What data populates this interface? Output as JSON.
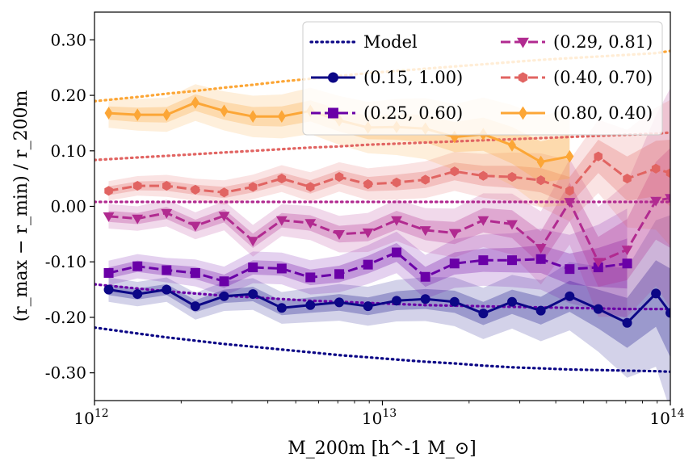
{
  "chart_data": {
    "type": "line",
    "title": "",
    "xlabel": "M_200m [h^-1 M_⊙]",
    "ylabel": "(r_max − r_min) / r_200m",
    "xscale": "log",
    "xlim": [
      1000000000000.0,
      100000000000000.0
    ],
    "ylim": [
      -0.35,
      0.35
    ],
    "xticks": [
      {
        "value": 1000000000000.0,
        "base": "10",
        "exp": "12"
      },
      {
        "value": 10000000000000.0,
        "base": "10",
        "exp": "13"
      },
      {
        "value": 100000000000000.0,
        "base": "10",
        "exp": "14"
      }
    ],
    "yticks": [
      {
        "value": -0.3,
        "label": "-0.30"
      },
      {
        "value": -0.2,
        "label": "-0.20"
      },
      {
        "value": -0.1,
        "label": "-0.10"
      },
      {
        "value": 0.0,
        "label": "0.00"
      },
      {
        "value": 0.1,
        "label": "0.10"
      },
      {
        "value": 0.2,
        "label": "0.20"
      },
      {
        "value": 0.3,
        "label": "0.30"
      }
    ],
    "grid": false,
    "legend_placement": "top-right",
    "legend_model_label": "Model",
    "x": [
      1120000000000.0,
      1410000000000.0,
      1780000000000.0,
      2240000000000.0,
      2820000000000.0,
      3550000000000.0,
      4470000000000.0,
      5620000000000.0,
      7080000000000.0,
      8910000000000.0,
      11200000000000.0,
      14100000000000.0,
      17800000000000.0,
      22400000000000.0,
      28200000000000.0,
      35500000000000.0,
      44700000000000.0,
      56200000000000.0,
      70800000000000.0,
      89100000000000.0,
      100000000000000.0
    ],
    "series": [
      {
        "name": "(0.15, 1.00)",
        "color": "#0c0786",
        "marker": "circle",
        "dash": "solid",
        "values": [
          -0.15,
          -0.158,
          -0.15,
          -0.18,
          -0.162,
          -0.158,
          -0.183,
          -0.178,
          -0.173,
          -0.18,
          -0.17,
          -0.167,
          -0.172,
          -0.193,
          -0.172,
          -0.188,
          -0.162,
          -0.185,
          -0.21,
          -0.157,
          -0.192
        ],
        "model": [
          -0.222,
          -0.229,
          -0.236,
          -0.242,
          -0.248,
          -0.253,
          -0.258,
          -0.263,
          -0.268,
          -0.272,
          -0.276,
          -0.28,
          -0.283,
          -0.287,
          -0.29,
          -0.292,
          -0.294,
          -0.295,
          -0.296,
          -0.297,
          -0.298
        ],
        "spread": [
          0.01,
          0.01,
          0.01,
          0.011,
          0.012,
          0.013,
          0.013,
          0.014,
          0.015,
          0.016,
          0.017,
          0.018,
          0.02,
          0.021,
          0.022,
          0.025,
          0.028,
          0.035,
          0.045,
          0.06,
          0.08
        ]
      },
      {
        "name": "(0.25, 0.60)",
        "color": "#6a00a7",
        "marker": "square",
        "dash": "dashed",
        "values": [
          -0.12,
          -0.108,
          -0.115,
          -0.12,
          -0.135,
          -0.11,
          -0.112,
          -0.128,
          -0.122,
          -0.105,
          -0.083,
          -0.127,
          -0.103,
          -0.097,
          -0.097,
          -0.095,
          -0.113,
          -0.11,
          -0.103,
          null,
          null
        ],
        "model": [
          -0.143,
          -0.148,
          -0.153,
          -0.157,
          -0.161,
          -0.164,
          -0.167,
          -0.17,
          -0.172,
          -0.174,
          -0.176,
          -0.178,
          -0.179,
          -0.18,
          -0.181,
          -0.182,
          -0.183,
          -0.184,
          -0.185,
          -0.185,
          -0.185
        ],
        "spread": [
          0.01,
          0.01,
          0.01,
          0.011,
          0.012,
          0.013,
          0.013,
          0.014,
          0.015,
          0.016,
          0.017,
          0.018,
          0.02,
          0.021,
          0.022,
          0.025,
          0.028,
          0.035,
          0.045,
          0.06,
          0.08
        ]
      },
      {
        "name": "(0.29, 0.81)",
        "color": "#b12a90",
        "marker": "triangle",
        "dash": "dashed",
        "values": [
          -0.018,
          -0.022,
          -0.012,
          -0.035,
          -0.017,
          -0.062,
          -0.025,
          -0.03,
          -0.05,
          -0.047,
          -0.025,
          -0.043,
          -0.048,
          -0.025,
          -0.032,
          -0.075,
          0.008,
          -0.1,
          -0.078,
          0.01,
          0.015
        ],
        "model": [
          0.008,
          0.008,
          0.008,
          0.008,
          0.008,
          0.008,
          0.008,
          0.008,
          0.008,
          0.008,
          0.008,
          0.008,
          0.008,
          0.008,
          0.008,
          0.008,
          0.008,
          0.008,
          0.008,
          0.008,
          0.008
        ],
        "spread": [
          0.01,
          0.01,
          0.011,
          0.011,
          0.012,
          0.013,
          0.013,
          0.014,
          0.015,
          0.016,
          0.017,
          0.018,
          0.02,
          0.022,
          0.025,
          0.03,
          0.035,
          0.045,
          0.055,
          0.07,
          0.09
        ]
      },
      {
        "name": "(0.40, 0.70)",
        "color": "#e16462",
        "marker": "hexagon",
        "dash": "dashed",
        "values": [
          0.028,
          0.037,
          0.037,
          0.03,
          0.025,
          0.035,
          0.05,
          0.035,
          0.053,
          0.04,
          0.043,
          0.048,
          0.063,
          0.055,
          0.053,
          0.047,
          0.028,
          0.09,
          0.05,
          0.068,
          0.06
        ],
        "model": [
          0.085,
          0.088,
          0.091,
          0.094,
          0.097,
          0.1,
          0.103,
          0.106,
          0.108,
          0.111,
          0.113,
          0.115,
          0.117,
          0.119,
          0.121,
          0.123,
          0.125,
          0.127,
          0.129,
          0.131,
          0.133
        ],
        "spread": [
          0.008,
          0.008,
          0.009,
          0.009,
          0.01,
          0.01,
          0.011,
          0.012,
          0.012,
          0.013,
          0.014,
          0.015,
          0.016,
          0.018,
          0.02,
          0.022,
          0.025,
          0.03,
          0.04,
          0.05,
          0.06
        ]
      },
      {
        "name": "(0.80, 0.40)",
        "color": "#fca636",
        "marker": "diamond",
        "dash": "solid",
        "values": [
          0.168,
          0.165,
          0.165,
          0.187,
          0.172,
          0.162,
          0.162,
          0.172,
          0.155,
          0.142,
          0.143,
          0.14,
          0.125,
          0.13,
          0.11,
          0.08,
          0.09,
          null,
          null,
          null,
          null
        ],
        "model": [
          0.192,
          0.197,
          0.203,
          0.208,
          0.214,
          0.219,
          0.225,
          0.23,
          0.235,
          0.24,
          0.244,
          0.248,
          0.252,
          0.256,
          0.26,
          0.264,
          0.267,
          0.27,
          0.273,
          0.276,
          0.28
        ],
        "spread": [
          0.012,
          0.013,
          0.014,
          0.015,
          0.016,
          0.017,
          0.018,
          0.019,
          0.02,
          0.021,
          0.023,
          0.025,
          0.027,
          0.03,
          0.033,
          0.037,
          0.04,
          0.045,
          0.05,
          0.055,
          0.06
        ]
      }
    ]
  }
}
